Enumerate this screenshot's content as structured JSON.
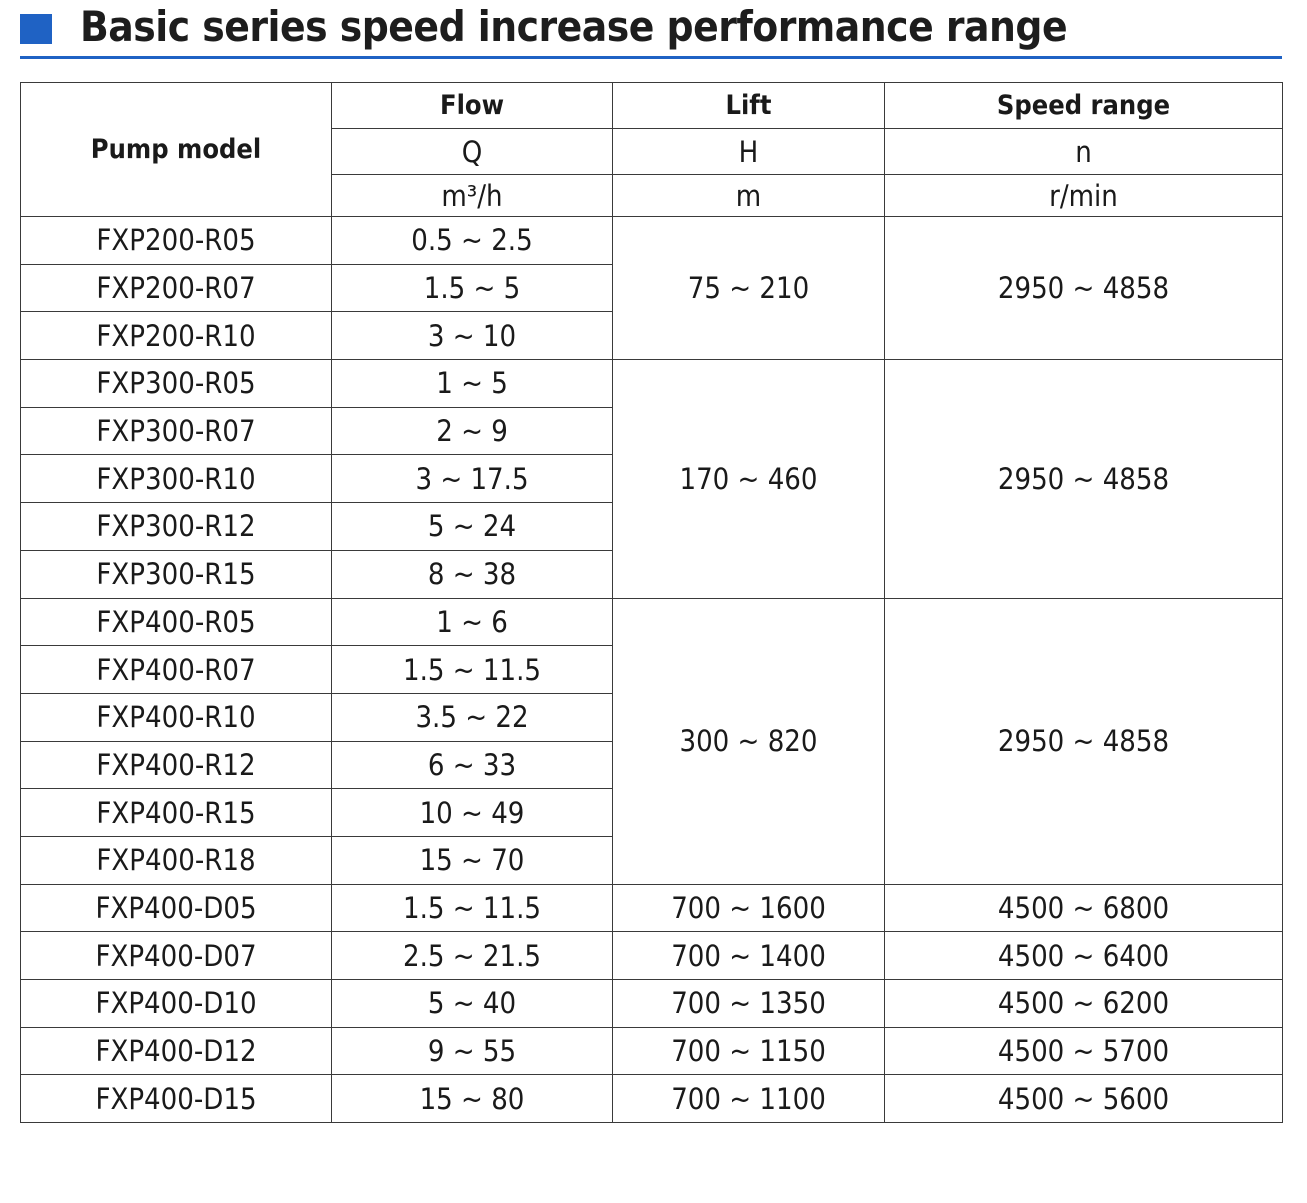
{
  "title": "Basic series speed increase performance range",
  "colors": {
    "accent": "#1f62c4",
    "border": "#3a3a3a",
    "text": "#1a1a1a"
  },
  "table": {
    "headers": {
      "pump_model": "Pump model",
      "flow": {
        "name": "Flow",
        "symbol": "Q",
        "unit": "m³/h"
      },
      "lift": {
        "name": "Lift",
        "symbol": "H",
        "unit": "m"
      },
      "speed": {
        "name": "Speed range",
        "symbol": "n",
        "unit": "r/min"
      }
    },
    "groups": [
      {
        "lift": "75 ~ 210",
        "speed": "2950 ~ 4858",
        "rows": [
          {
            "model": "FXP200-R05",
            "flow": "0.5 ~ 2.5"
          },
          {
            "model": "FXP200-R07",
            "flow": "1.5 ~ 5"
          },
          {
            "model": "FXP200-R10",
            "flow": "3 ~ 10"
          }
        ]
      },
      {
        "lift": "170 ~ 460",
        "speed": "2950 ~ 4858",
        "rows": [
          {
            "model": "FXP300-R05",
            "flow": "1 ~ 5"
          },
          {
            "model": "FXP300-R07",
            "flow": "2 ~ 9"
          },
          {
            "model": "FXP300-R10",
            "flow": "3 ~ 17.5"
          },
          {
            "model": "FXP300-R12",
            "flow": "5 ~ 24"
          },
          {
            "model": "FXP300-R15",
            "flow": "8 ~ 38"
          }
        ]
      },
      {
        "lift": "300 ~ 820",
        "speed": "2950 ~ 4858",
        "rows": [
          {
            "model": "FXP400-R05",
            "flow": "1 ~ 6"
          },
          {
            "model": "FXP400-R07",
            "flow": "1.5 ~ 11.5"
          },
          {
            "model": "FXP400-R10",
            "flow": "3.5 ~ 22"
          },
          {
            "model": "FXP400-R12",
            "flow": "6 ~ 33"
          },
          {
            "model": "FXP400-R15",
            "flow": "10 ~ 49"
          },
          {
            "model": "FXP400-R18",
            "flow": "15 ~ 70"
          }
        ]
      },
      {
        "rows": [
          {
            "model": "FXP400-D05",
            "flow": "1.5 ~ 11.5",
            "lift": "700 ~ 1600",
            "speed": "4500 ~ 6800"
          },
          {
            "model": "FXP400-D07",
            "flow": "2.5 ~ 21.5",
            "lift": "700 ~ 1400",
            "speed": "4500 ~ 6400"
          },
          {
            "model": "FXP400-D10",
            "flow": "5 ~ 40",
            "lift": "700 ~ 1350",
            "speed": "4500 ~ 6200"
          },
          {
            "model": "FXP400-D12",
            "flow": "9 ~ 55",
            "lift": "700 ~ 1150",
            "speed": "4500 ~ 5700"
          },
          {
            "model": "FXP400-D15",
            "flow": "15 ~ 80",
            "lift": "700 ~ 1100",
            "speed": "4500 ~ 5600"
          }
        ]
      }
    ]
  }
}
